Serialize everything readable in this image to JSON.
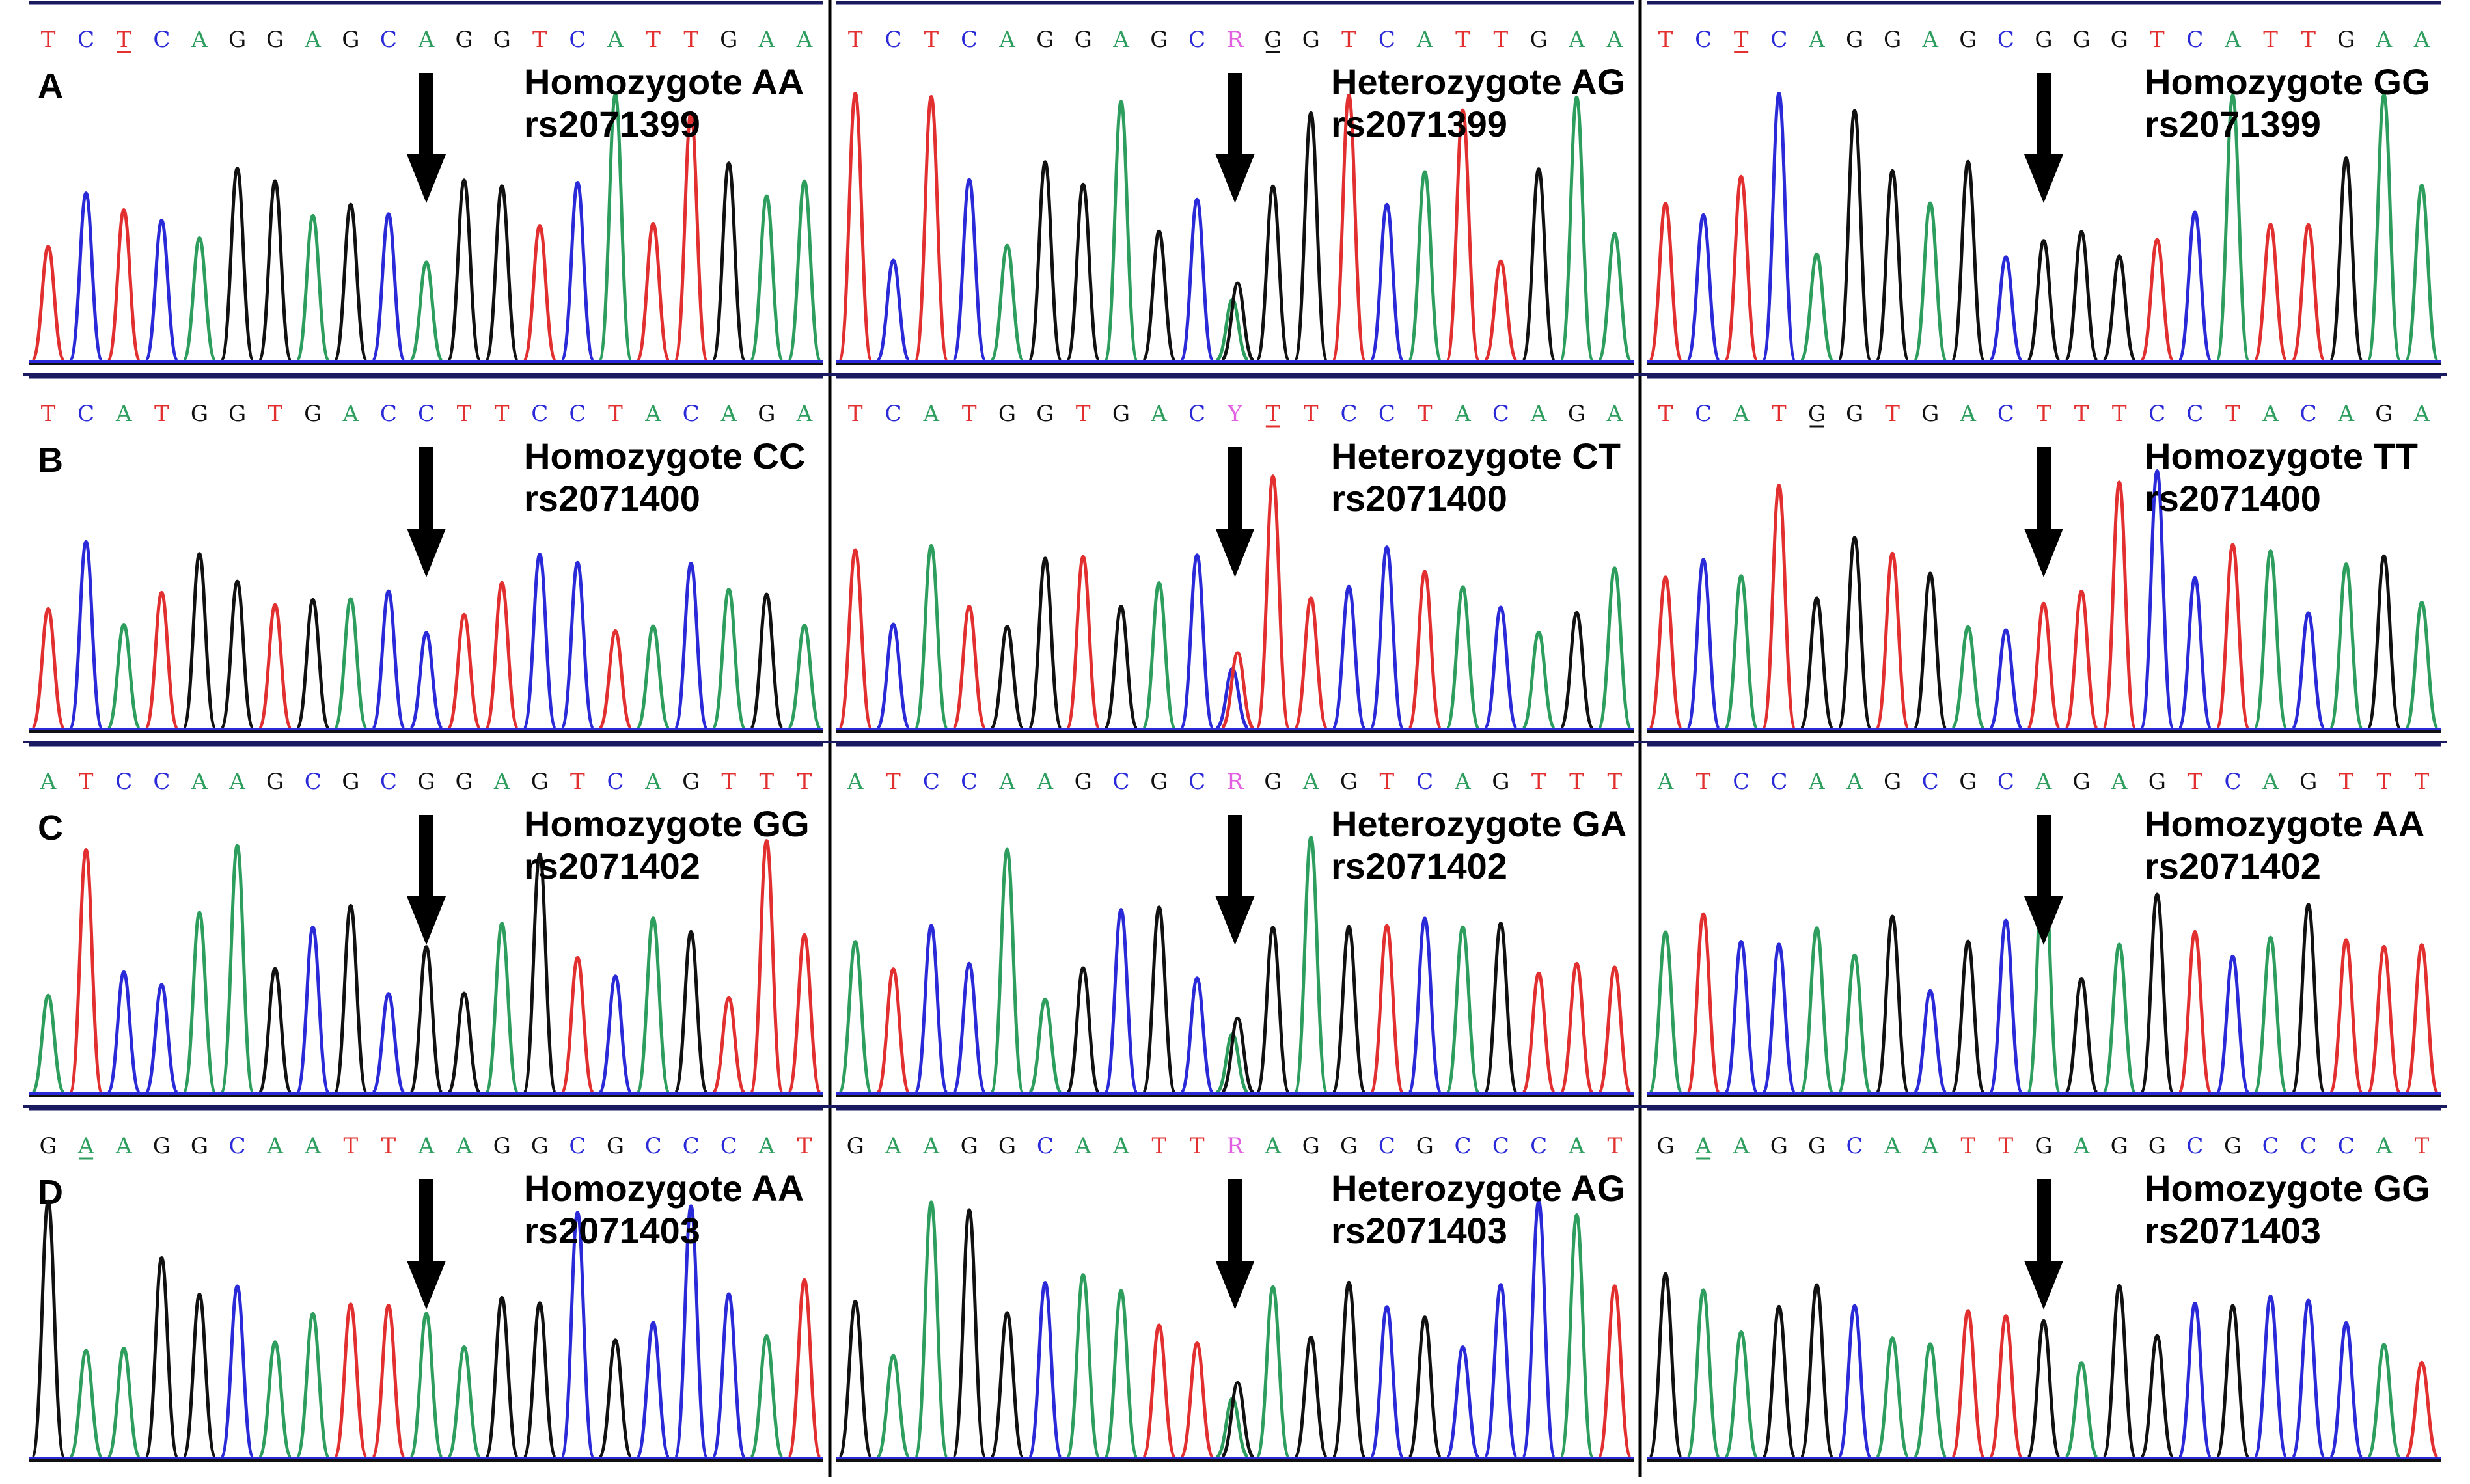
{
  "colors": {
    "A": "#2e9e5e",
    "C": "#2a2ad8",
    "G": "#111111",
    "T": "#e23030",
    "ambiguous": "#e060e0"
  },
  "rows": [
    {
      "label": "A",
      "panels": [
        {
          "sequence": "TCTCAGGAGCAGGTCATTGAA",
          "underline": [
            2
          ],
          "ambiguous": [],
          "arrow": 10,
          "genotype": "Homozygote AA",
          "snp": "rs2071399"
        },
        {
          "sequence": "TCTCAGGAGCRGGTCATTGAA",
          "underline": [
            11
          ],
          "ambiguous": [
            10
          ],
          "arrow": 10,
          "genotype": "Heterozygote AG",
          "snp": "rs2071399"
        },
        {
          "sequence": "TCTCAGGAGCGGGTCATTGAA",
          "underline": [
            2
          ],
          "ambiguous": [],
          "arrow": 10,
          "genotype": "Homozygote GG",
          "snp": "rs2071399"
        }
      ]
    },
    {
      "label": "B",
      "panels": [
        {
          "sequence": "TCATGGTGACCTTCCTACAGA",
          "underline": [],
          "ambiguous": [],
          "arrow": 10,
          "genotype": "Homozygote CC",
          "snp": "rs2071400"
        },
        {
          "sequence": "TCATGGTGACYTTCCTACAGA",
          "underline": [
            11
          ],
          "ambiguous": [
            10
          ],
          "arrow": 10,
          "genotype": "Heterozygote CT",
          "snp": "rs2071400"
        },
        {
          "sequence": "TCATGGTGACTTTCCTACAGA",
          "underline": [
            4
          ],
          "ambiguous": [],
          "arrow": 10,
          "genotype": "Homozygote TT",
          "snp": "rs2071400"
        }
      ]
    },
    {
      "label": "C",
      "panels": [
        {
          "sequence": "ATCCAAGCGCGGAGTCAGTTT",
          "underline": [],
          "ambiguous": [],
          "arrow": 10,
          "genotype": "Homozygote GG",
          "snp": "rs2071402"
        },
        {
          "sequence": "ATCCAAGCGCRGAGTCAGTTT",
          "underline": [],
          "ambiguous": [
            10
          ],
          "arrow": 10,
          "genotype": "Heterozygote GA",
          "snp": "rs2071402"
        },
        {
          "sequence": "ATCCAAGCGCAGAGTCAGTTT",
          "underline": [],
          "ambiguous": [],
          "arrow": 10,
          "genotype": "Homozygote AA",
          "snp": "rs2071402"
        }
      ]
    },
    {
      "label": "D",
      "panels": [
        {
          "sequence": "GAAGGCAATTAAGGCGCCCAT",
          "underline": [
            1
          ],
          "ambiguous": [],
          "arrow": 10,
          "genotype": "Homozygote AA",
          "snp": "rs2071403"
        },
        {
          "sequence": "GAAGGCAATTRAGGCGCCCAT",
          "underline": [],
          "ambiguous": [
            10
          ],
          "arrow": 10,
          "genotype": "Heterozygote AG",
          "snp": "rs2071403"
        },
        {
          "sequence": "GAAGGCAATTGAGGCGCCCAT",
          "underline": [
            1
          ],
          "ambiguous": [],
          "arrow": 10,
          "genotype": "Homozygote GG",
          "snp": "rs2071403"
        }
      ]
    }
  ]
}
